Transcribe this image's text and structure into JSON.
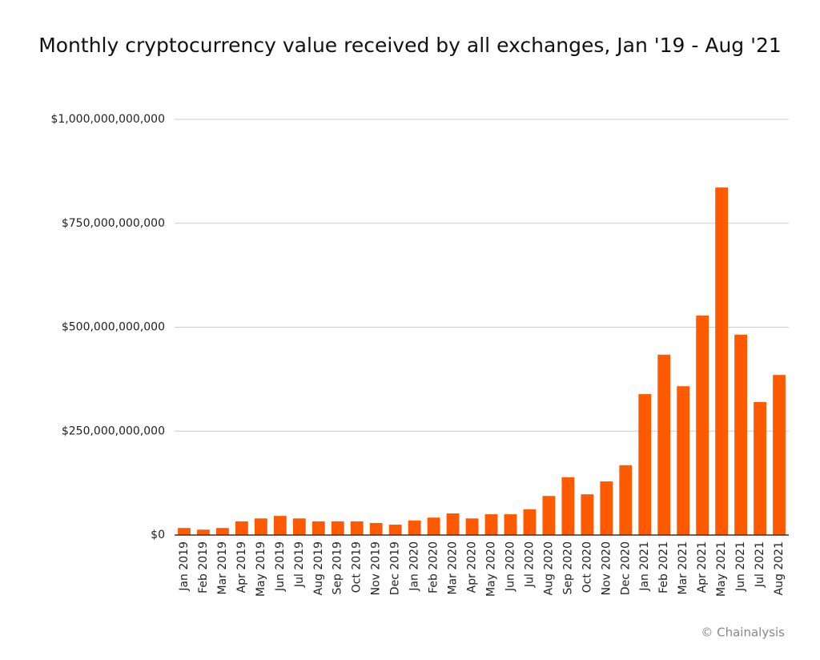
{
  "chart_data": {
    "type": "bar",
    "title": "Monthly cryptocurrency value received by all exchanges, Jan '19 - Aug '21",
    "credit": "© Chainalysis",
    "categories": [
      "Jan 2019",
      "Feb 2019",
      "Mar 2019",
      "Apr 2019",
      "May 2019",
      "Jun 2019",
      "Jul 2019",
      "Aug 2019",
      "Sep 2019",
      "Oct 2019",
      "Nov 2019",
      "Dec 2019",
      "Jan 2020",
      "Feb 2020",
      "Mar 2020",
      "Apr 2020",
      "May 2020",
      "Jun 2020",
      "Jul 2020",
      "Aug 2020",
      "Sep 2020",
      "Oct 2020",
      "Nov 2020",
      "Dec 2020",
      "Jan 2021",
      "Feb 2021",
      "Mar 2021",
      "Apr 2021",
      "May 2021",
      "Jun 2021",
      "Jul 2021",
      "Aug 2021"
    ],
    "values": [
      17000000000,
      13000000000,
      17000000000,
      33000000000,
      40000000000,
      46000000000,
      40000000000,
      33000000000,
      33000000000,
      33000000000,
      29000000000,
      25000000000,
      35000000000,
      42000000000,
      52000000000,
      40000000000,
      50000000000,
      50000000000,
      62000000000,
      94000000000,
      139000000000,
      98000000000,
      129000000000,
      168000000000,
      339000000000,
      434000000000,
      358000000000,
      528000000000,
      836000000000,
      482000000000,
      320000000000,
      385000000000
    ],
    "color": "#ff5a00",
    "ylim": [
      0,
      1000000000000
    ],
    "yticks": [
      {
        "value": 0,
        "label": "$0"
      },
      {
        "value": 250000000000,
        "label": "$250,000,000,000"
      },
      {
        "value": 500000000000,
        "label": "$500,000,000,000"
      },
      {
        "value": 750000000000,
        "label": "$750,000,000,000"
      },
      {
        "value": 1000000000000,
        "label": "$1,000,000,000,000"
      }
    ],
    "grid": true
  }
}
